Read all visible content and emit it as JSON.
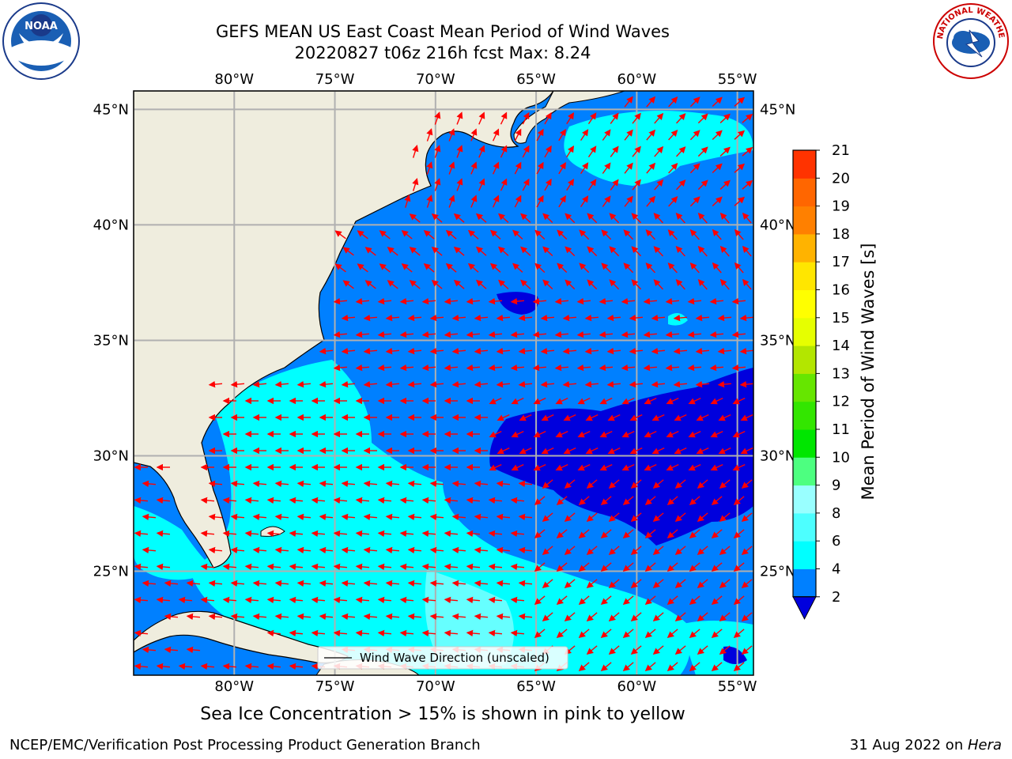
{
  "header": {
    "title_line1": "GEFS MEAN US East Coast Mean Period of Wind Waves",
    "title_line2": "20220827 t06z 216h fcst   Max: 8.24"
  },
  "logos": {
    "left": {
      "icon": "noaa-logo",
      "text": "NOAA"
    },
    "right": {
      "icon": "nws-logo",
      "text": "NATIONAL WEATHER SERVICE"
    }
  },
  "map": {
    "projection": "plate carree",
    "lon_range": [
      -85,
      -54.2
    ],
    "lat_range": [
      20.5,
      45.8
    ],
    "gridlines": true,
    "lon_ticks": [
      {
        "value": -80,
        "label": "80°W"
      },
      {
        "value": -75,
        "label": "75°W"
      },
      {
        "value": -70,
        "label": "70°W"
      },
      {
        "value": -65,
        "label": "65°W"
      },
      {
        "value": -60,
        "label": "60°W"
      },
      {
        "value": -55,
        "label": "55°W"
      }
    ],
    "lat_ticks": [
      {
        "value": 45,
        "label": "45°N"
      },
      {
        "value": 40,
        "label": "40°N"
      },
      {
        "value": 35,
        "label": "35°N"
      },
      {
        "value": 30,
        "label": "30°N"
      },
      {
        "value": 25,
        "label": "25°N"
      }
    ],
    "legend_label": "Wind Wave Direction (unscaled)",
    "legend_location": "lower-center",
    "arrow_color": "#ff0000",
    "land_color": "#efedde",
    "ocean_colors": {
      "2-4": "#0080ff",
      "4-6": "#00ffff",
      "6-8": "#66ffff",
      "lt2": "#0000dd"
    }
  },
  "colorbar": {
    "label": "Mean Period of Wind Waves [s]",
    "ticks": [
      "2",
      "4",
      "6",
      "8",
      "9",
      "10",
      "11",
      "12",
      "13",
      "14",
      "15",
      "16",
      "17",
      "18",
      "19",
      "20",
      "21"
    ],
    "colors": [
      "#0080ff",
      "#00ffff",
      "#4dffff",
      "#99ffff",
      "#4dff80",
      "#00e600",
      "#33e600",
      "#66e600",
      "#b3e600",
      "#e6ff00",
      "#ffff00",
      "#ffe600",
      "#ffb300",
      "#ff8000",
      "#ff6600",
      "#ff3300"
    ],
    "under_color": "#0000dd",
    "extend": "min"
  },
  "footer": {
    "ice_note": "Sea Ice Concentration > 15% is shown in pink to yellow",
    "credit": "NCEP/EMC/Verification Post Processing Product Generation Branch",
    "date": "31 Aug 2022 on ",
    "host": "Hera"
  }
}
